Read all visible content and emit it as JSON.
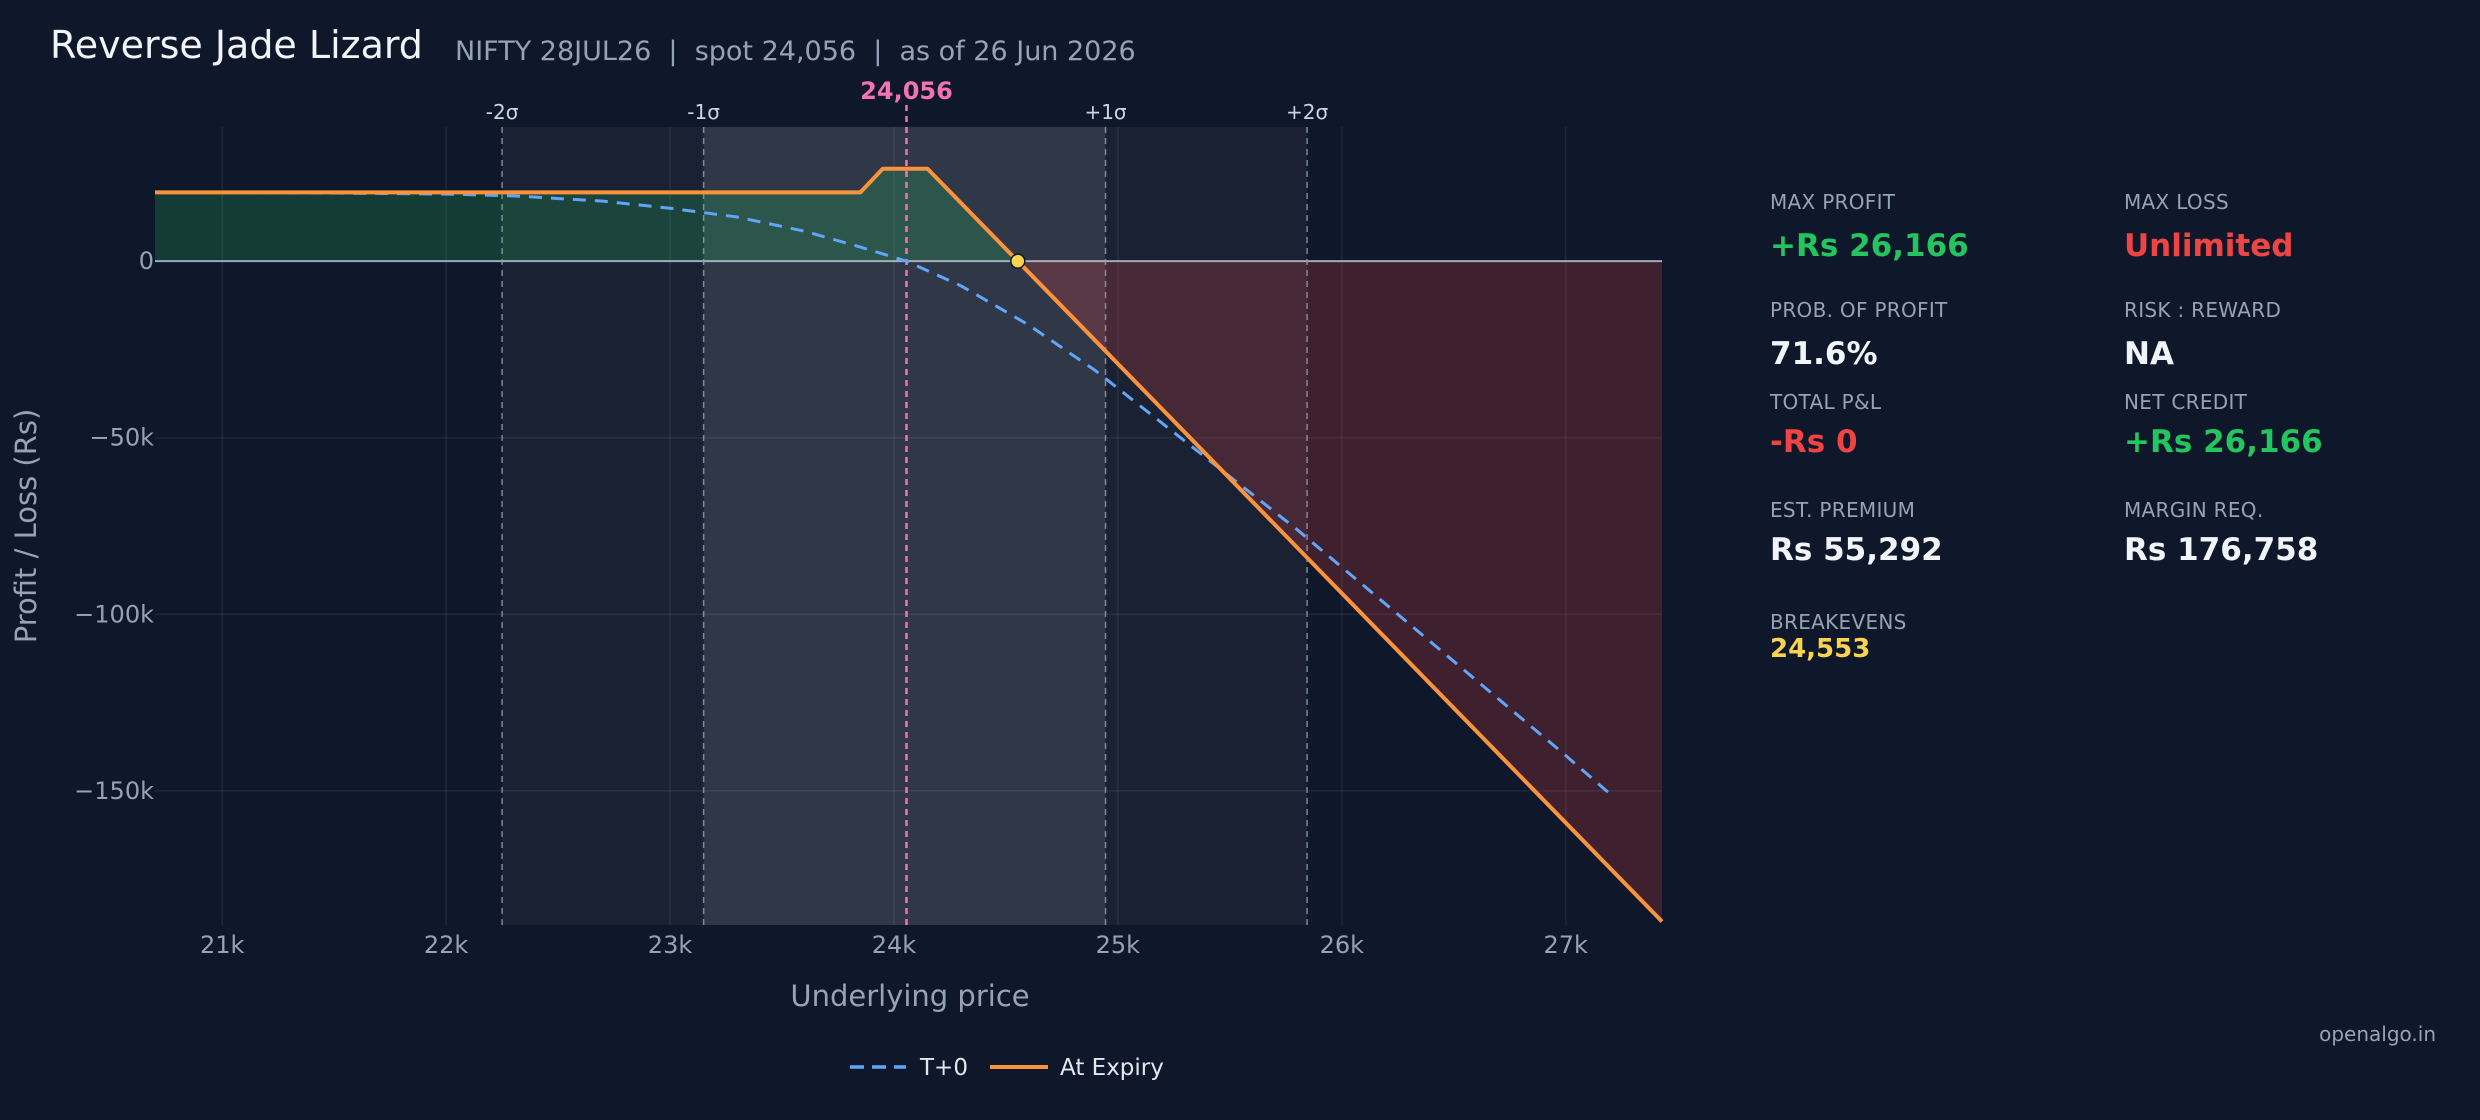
{
  "header": {
    "title": "Reverse Jade Lizard",
    "subtitle": "NIFTY 28JUL26  |  spot 24,056  |  as of 26 Jun 2026"
  },
  "chart_data": {
    "type": "line",
    "xlabel": "Underlying price",
    "ylabel": "Profit / Loss (Rs)",
    "xlim": [
      20700,
      27430
    ],
    "ylim": [
      -188000,
      38000
    ],
    "x_ticks": [
      21000,
      22000,
      23000,
      24000,
      25000,
      26000,
      27000
    ],
    "x_tick_labels": [
      "21k",
      "22k",
      "23k",
      "24k",
      "25k",
      "26k",
      "27k"
    ],
    "y_ticks": [
      0,
      -50000,
      -100000,
      -150000
    ],
    "y_tick_labels": [
      "0",
      "−50k",
      "−100k",
      "−150k"
    ],
    "spot": 24056,
    "spot_label": "24,056",
    "sigma_lines": [
      {
        "label": "-2σ",
        "x": 22250
      },
      {
        "label": "-1σ",
        "x": 23150
      },
      {
        "label": "+1σ",
        "x": 24945
      },
      {
        "label": "+2σ",
        "x": 25845
      }
    ],
    "breakeven": 24553,
    "legend_placement": "bottom-center",
    "grid": true,
    "series": [
      {
        "name": "T+0",
        "style": "dashed",
        "color": "#60a5fa",
        "x": [
          20700,
          21500,
          22000,
          22300,
          22700,
          23000,
          23300,
          23600,
          23850,
          24056,
          24300,
          24600,
          24900,
          25200,
          25500,
          25800,
          26100,
          26400,
          26700,
          27000,
          27200
        ],
        "y": [
          19500,
          19300,
          19000,
          18500,
          17000,
          15000,
          12500,
          8500,
          4000,
          0,
          -7000,
          -18000,
          -31000,
          -46000,
          -61000,
          -76000,
          -92000,
          -108000,
          -124000,
          -140000,
          -151000
        ]
      },
      {
        "name": "At Expiry",
        "style": "solid",
        "color": "#fb923c",
        "x": [
          20700,
          23850,
          23950,
          24150,
          24553,
          27430
        ],
        "y": [
          19500,
          19500,
          26166,
          26166,
          0,
          -187000
        ]
      }
    ]
  },
  "stats": {
    "max_profit": {
      "label": "MAX PROFIT",
      "value": "+Rs 26,166"
    },
    "max_loss": {
      "label": "MAX LOSS",
      "value": "Unlimited"
    },
    "prob_profit": {
      "label": "PROB. OF PROFIT",
      "value": "71.6%"
    },
    "risk_reward": {
      "label": "RISK : REWARD",
      "value": "NA"
    },
    "total_pnl": {
      "label": "TOTAL P&L",
      "value": "-Rs 0"
    },
    "net_credit": {
      "label": "NET CREDIT",
      "value": "+Rs 26,166"
    },
    "est_premium": {
      "label": "EST. PREMIUM",
      "value": "Rs 55,292"
    },
    "margin_req": {
      "label": "MARGIN REQ.",
      "value": "Rs 176,758"
    },
    "breakevens": {
      "label": "BREAKEVENS",
      "value": "24,553"
    }
  },
  "footer": {
    "brand": "openalgo.in"
  },
  "colors": {
    "background": "#0f172a",
    "profit": "#22c55e",
    "loss": "#ef4444",
    "t0": "#60a5fa",
    "expiry": "#fb923c",
    "spot": "#f472b6",
    "breakeven": "#fcd34d"
  }
}
